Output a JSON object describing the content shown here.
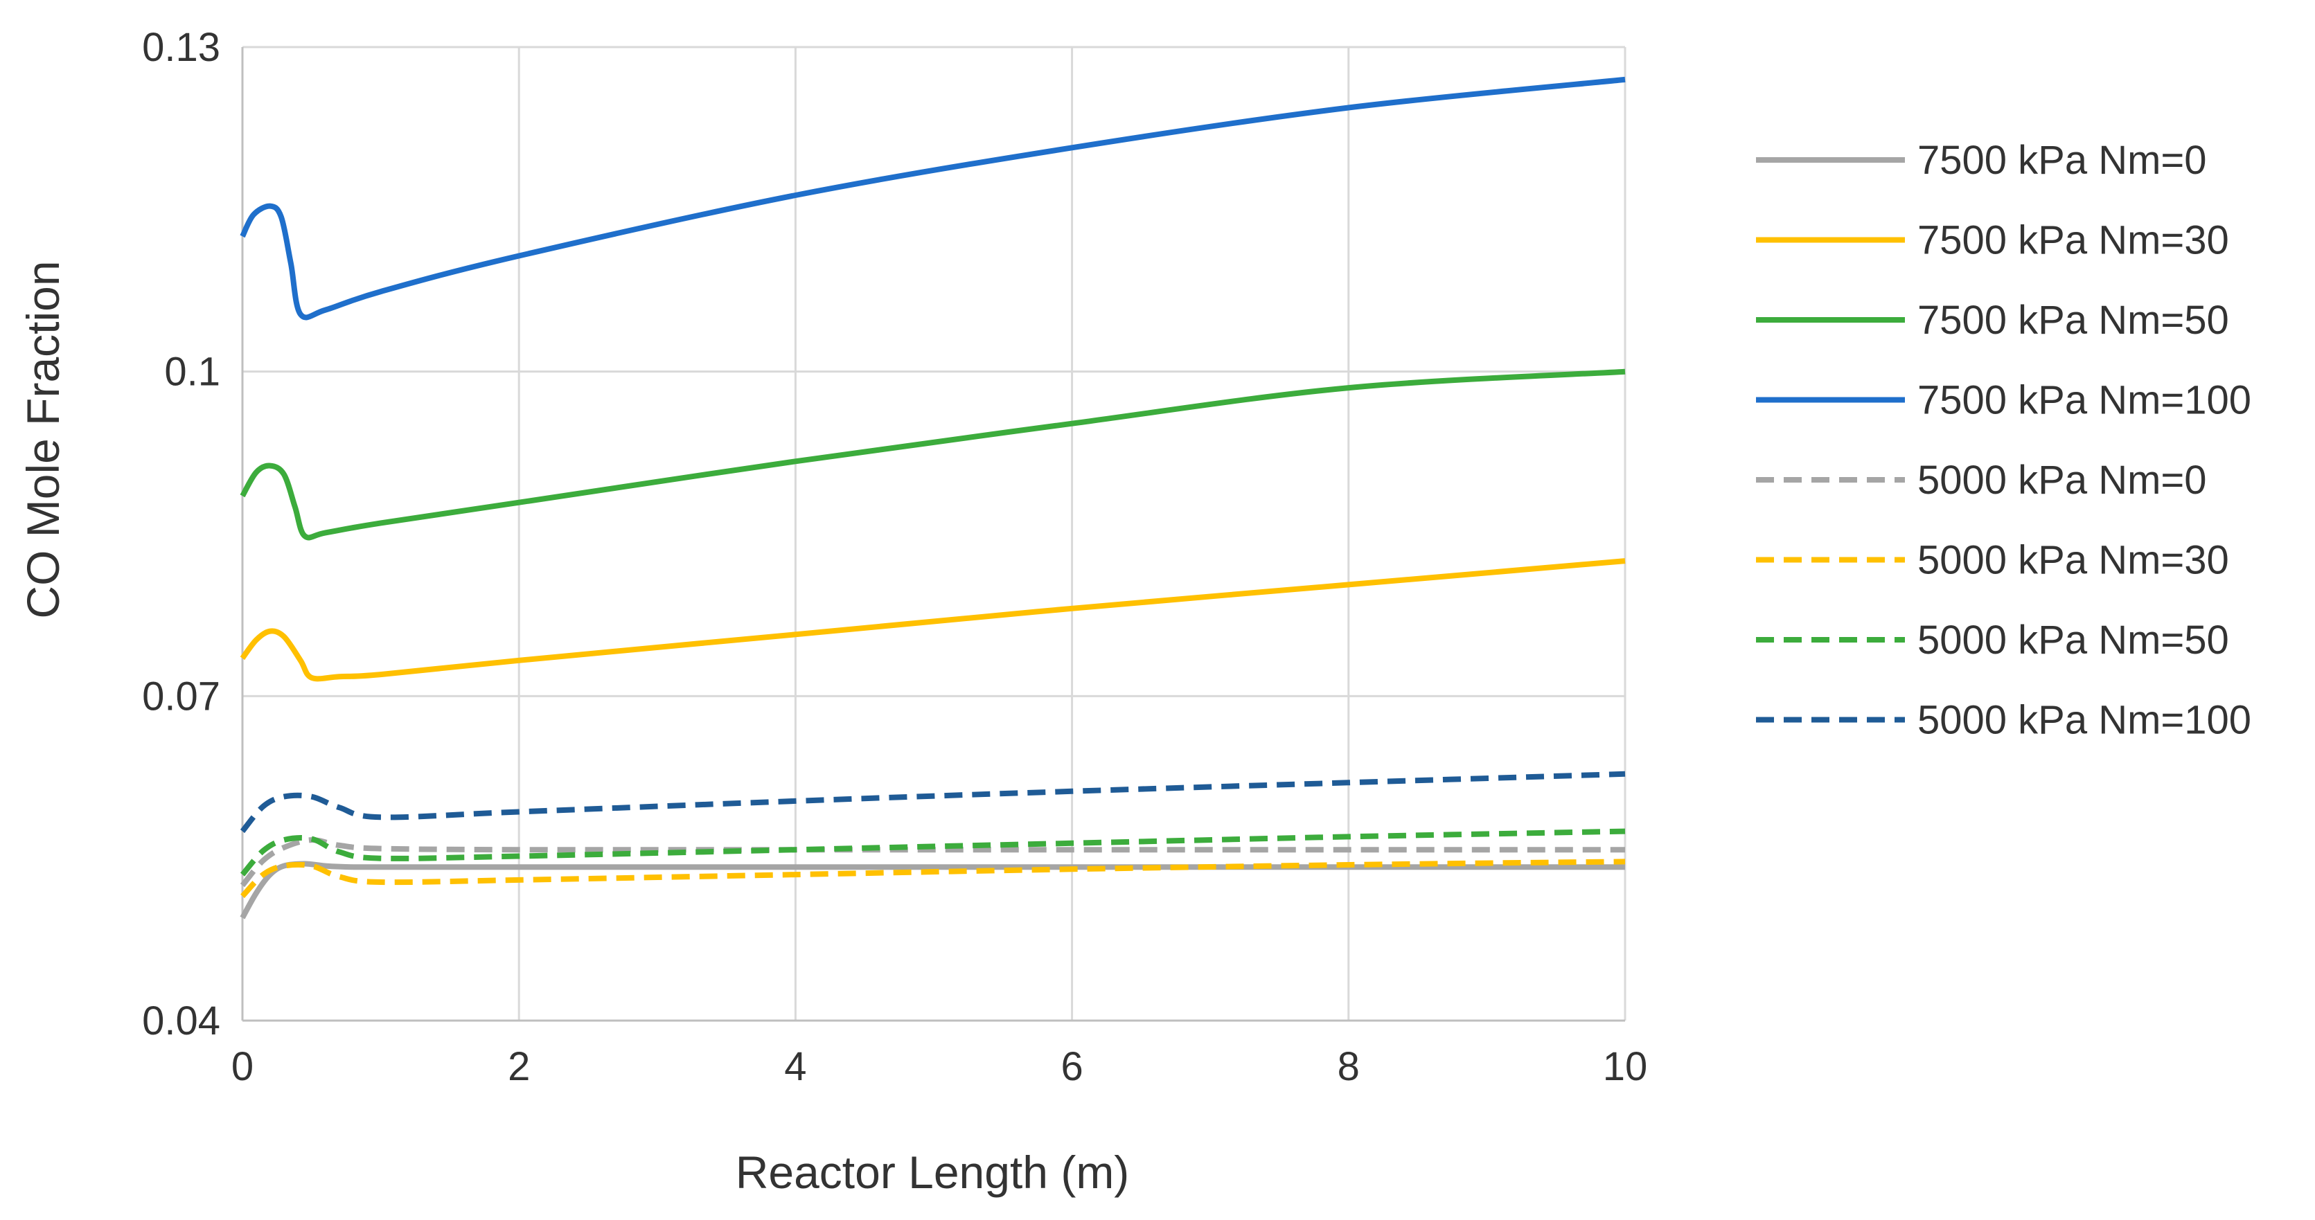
{
  "chart_data": {
    "type": "line",
    "title": "",
    "xlabel": "Reactor Length (m)",
    "ylabel": "CO  Mole Fraction",
    "xlim": [
      0,
      10
    ],
    "ylim": [
      0.04,
      0.13
    ],
    "x_ticks": [
      "0",
      "2",
      "4",
      "6",
      "8",
      "10"
    ],
    "y_ticks": [
      "0.04",
      "0.07",
      "0.1",
      "0.13"
    ],
    "grid": true,
    "legend_position": "right",
    "series": [
      {
        "name": "7500 kPa Nm=0",
        "color": "#a5a5a5",
        "dash": "solid",
        "points": [
          [
            0,
            0.0495
          ],
          [
            0.1,
            0.0518
          ],
          [
            0.2,
            0.0535
          ],
          [
            0.3,
            0.0543
          ],
          [
            0.45,
            0.0545
          ],
          [
            0.6,
            0.0543
          ],
          [
            0.8,
            0.0542
          ],
          [
            1.2,
            0.0542
          ],
          [
            2,
            0.0542
          ],
          [
            4,
            0.0542
          ],
          [
            6,
            0.0542
          ],
          [
            8,
            0.0542
          ],
          [
            10,
            0.0542
          ]
        ]
      },
      {
        "name": "7500 kPa Nm=30",
        "color": "#ffc000",
        "dash": "solid",
        "points": [
          [
            0,
            0.0735
          ],
          [
            0.1,
            0.0752
          ],
          [
            0.2,
            0.076
          ],
          [
            0.3,
            0.0755
          ],
          [
            0.42,
            0.0733
          ],
          [
            0.5,
            0.0717
          ],
          [
            0.7,
            0.0718
          ],
          [
            1,
            0.072
          ],
          [
            2,
            0.0733
          ],
          [
            4,
            0.0757
          ],
          [
            6,
            0.0781
          ],
          [
            8,
            0.0803
          ],
          [
            10,
            0.0825
          ]
        ]
      },
      {
        "name": "7500 kPa Nm=50",
        "color": "#3cac3c",
        "dash": "solid",
        "points": [
          [
            0,
            0.0885
          ],
          [
            0.1,
            0.0907
          ],
          [
            0.2,
            0.0913
          ],
          [
            0.3,
            0.0905
          ],
          [
            0.38,
            0.0875
          ],
          [
            0.45,
            0.0848
          ],
          [
            0.6,
            0.0851
          ],
          [
            1,
            0.086
          ],
          [
            2,
            0.0879
          ],
          [
            4,
            0.0917
          ],
          [
            6,
            0.0952
          ],
          [
            8,
            0.0985
          ],
          [
            10,
            0.1
          ]
        ]
      },
      {
        "name": "7500 kPa Nm=100",
        "color": "#1f6fcb",
        "dash": "solid",
        "points": [
          [
            0,
            0.1125
          ],
          [
            0.08,
            0.1145
          ],
          [
            0.2,
            0.1153
          ],
          [
            0.28,
            0.1143
          ],
          [
            0.35,
            0.11
          ],
          [
            0.42,
            0.1053
          ],
          [
            0.6,
            0.1057
          ],
          [
            1,
            0.1074
          ],
          [
            2,
            0.1107
          ],
          [
            4,
            0.1163
          ],
          [
            6,
            0.1207
          ],
          [
            8,
            0.1244
          ],
          [
            10,
            0.127
          ]
        ]
      },
      {
        "name": "5000 kPa Nm=0",
        "color": "#a5a5a5",
        "dash": "dashed",
        "points": [
          [
            0,
            0.0525
          ],
          [
            0.15,
            0.0548
          ],
          [
            0.3,
            0.056
          ],
          [
            0.5,
            0.0567
          ],
          [
            0.7,
            0.0562
          ],
          [
            1,
            0.0559
          ],
          [
            2,
            0.0558
          ],
          [
            4,
            0.0558
          ],
          [
            6,
            0.0558
          ],
          [
            8,
            0.0558
          ],
          [
            10,
            0.0558
          ]
        ]
      },
      {
        "name": "5000 kPa Nm=30",
        "color": "#ffc000",
        "dash": "dashed",
        "points": [
          [
            0,
            0.0515
          ],
          [
            0.15,
            0.0535
          ],
          [
            0.3,
            0.0543
          ],
          [
            0.5,
            0.0543
          ],
          [
            0.7,
            0.0533
          ],
          [
            1,
            0.0528
          ],
          [
            2,
            0.053
          ],
          [
            4,
            0.0535
          ],
          [
            6,
            0.054
          ],
          [
            8,
            0.0544
          ],
          [
            10,
            0.0547
          ]
        ]
      },
      {
        "name": "5000 kPa Nm=50",
        "color": "#3cac3c",
        "dash": "dashed",
        "points": [
          [
            0,
            0.0535
          ],
          [
            0.15,
            0.0557
          ],
          [
            0.3,
            0.0567
          ],
          [
            0.5,
            0.0568
          ],
          [
            0.7,
            0.0556
          ],
          [
            1,
            0.055
          ],
          [
            2,
            0.0552
          ],
          [
            4,
            0.0558
          ],
          [
            6,
            0.0564
          ],
          [
            8,
            0.057
          ],
          [
            10,
            0.0575
          ]
        ]
      },
      {
        "name": "5000 kPa Nm=100",
        "color": "#1f5b96",
        "dash": "dashed",
        "points": [
          [
            0,
            0.0575
          ],
          [
            0.15,
            0.0598
          ],
          [
            0.3,
            0.0607
          ],
          [
            0.5,
            0.0607
          ],
          [
            0.7,
            0.0597
          ],
          [
            1,
            0.0588
          ],
          [
            2,
            0.0593
          ],
          [
            4,
            0.0603
          ],
          [
            6,
            0.0612
          ],
          [
            8,
            0.062
          ],
          [
            10,
            0.0628
          ]
        ]
      }
    ]
  }
}
